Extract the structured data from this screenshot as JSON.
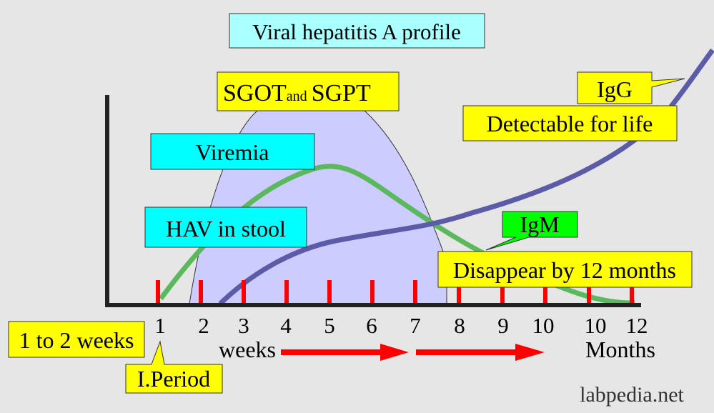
{
  "title": "Viral hepatitis A profile",
  "sgot_label": {
    "main": "SGOT",
    "small": "and",
    "tail": "SGPT"
  },
  "labels": {
    "viremia": "Viremia",
    "hav_stool": "HAV in stool",
    "igg": "IgG",
    "igg_note": "Detectable for life",
    "igm": "IgM",
    "igm_note": "Disappear by 12 months",
    "incubation": "1 to 2 weeks",
    "period": "I.Period",
    "weeks": "weeks",
    "months": "Months",
    "watermark": "labpedia.net"
  },
  "axis_ticks": [
    "1",
    "2",
    "3",
    "4",
    "5",
    "6",
    "7",
    "8",
    "9",
    "10",
    "10",
    "12"
  ],
  "colors": {
    "background": "#e6e6e6",
    "cyan_box": "#00ffff",
    "title_box": "#aaffff",
    "yellow_box": "#ffff00",
    "green_box": "#00ff00",
    "sgot_fill": "#ccccff",
    "viremia_line": "#5cb85c",
    "igg_line": "#5b5ba8",
    "tick": "#ff0000",
    "arrow": "#ff0000",
    "axis": "#222222"
  }
}
